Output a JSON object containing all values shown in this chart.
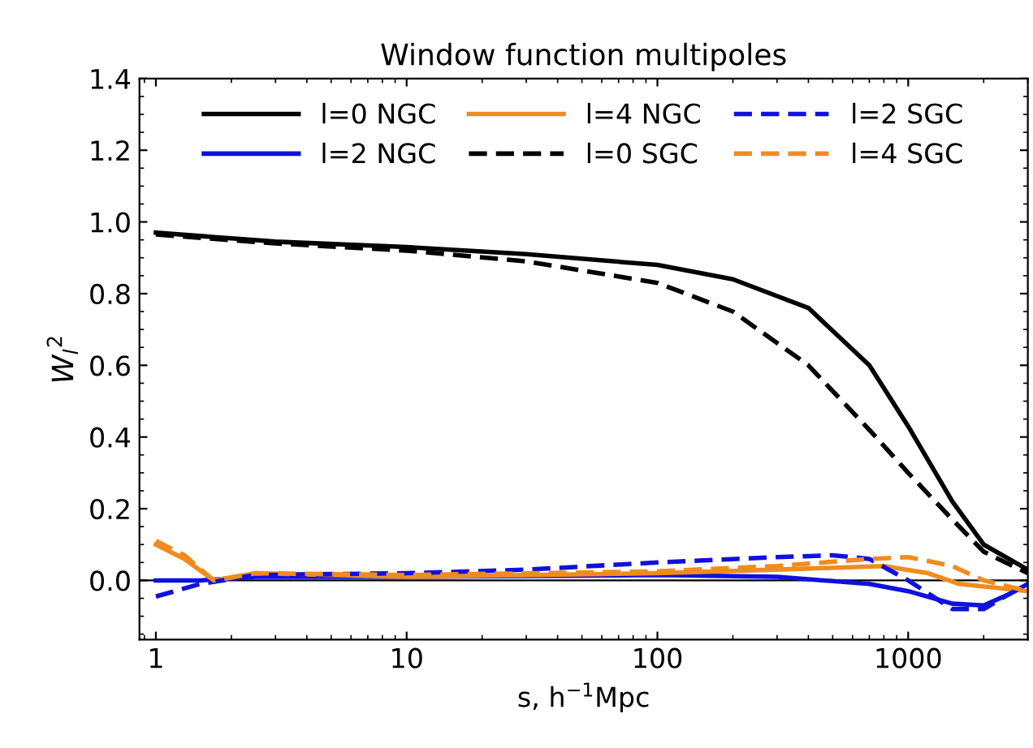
{
  "chart_data": {
    "type": "line",
    "title": "Window function multipoles",
    "xlabel": "s, h$^{−1}$Mpc",
    "ylabel": "W$_{l}$$^{2}$",
    "log": "x",
    "xlim": [
      0.86,
      3000
    ],
    "xticks": [
      1,
      10,
      100,
      1000
    ],
    "ylim": [
      -0.165,
      1.4
    ],
    "yticks": [
      {
        "value": 0,
        "label": "0.0"
      },
      0.2,
      0.4,
      0.6,
      0.8,
      {
        "value": 1,
        "label": "1.0"
      },
      1.2,
      1.4
    ],
    "grid": false,
    "legend": "top",
    "ref_lines": [
      {
        "axis": "y",
        "value": 0,
        "label": null,
        "color": "#000000"
      }
    ],
    "series": [
      {
        "name": "l=0 NGC",
        "color": "#000000",
        "line_style": "solid",
        "x": [
          1,
          3,
          10,
          30,
          100,
          200,
          400,
          700,
          1000,
          1500,
          2000,
          3000
        ],
        "values": [
          0.97,
          0.945,
          0.93,
          0.91,
          0.88,
          0.84,
          0.76,
          0.6,
          0.43,
          0.22,
          0.1,
          0.03
        ]
      },
      {
        "name": "l=2 NGC",
        "color": "#1010e0",
        "line_style": "solid",
        "x": [
          1,
          1.5,
          2.5,
          10,
          100,
          300,
          700,
          1000,
          1500,
          2000,
          2500,
          3000
        ],
        "values": [
          0.0,
          0.0,
          0.01,
          0.01,
          0.015,
          0.01,
          -0.01,
          -0.03,
          -0.065,
          -0.07,
          -0.04,
          -0.01
        ]
      },
      {
        "name": "l=4 NGC",
        "color": "#f08c1e",
        "line_style": "solid",
        "x": [
          1,
          1.3,
          1.7,
          2.5,
          10,
          100,
          300,
          800,
          1200,
          1600,
          2200,
          3000
        ],
        "values": [
          0.1,
          0.06,
          0.0,
          0.02,
          0.01,
          0.02,
          0.03,
          0.04,
          0.02,
          -0.01,
          -0.02,
          -0.03
        ]
      },
      {
        "name": "l=0 SGC",
        "color": "#000000",
        "line_style": "dashed",
        "x": [
          1,
          3,
          10,
          30,
          100,
          200,
          400,
          700,
          1000,
          1500,
          2000,
          3000
        ],
        "values": [
          0.965,
          0.94,
          0.92,
          0.89,
          0.83,
          0.75,
          0.6,
          0.42,
          0.3,
          0.17,
          0.08,
          0.02
        ]
      },
      {
        "name": "l=2 SGC",
        "color": "#1010e0",
        "line_style": "dashed",
        "x": [
          1,
          1.5,
          2.5,
          10,
          30,
          100,
          300,
          500,
          700,
          1000,
          1500,
          2000,
          2500,
          3000
        ],
        "values": [
          -0.045,
          -0.01,
          0.015,
          0.02,
          0.03,
          0.05,
          0.065,
          0.07,
          0.06,
          0.0,
          -0.08,
          -0.08,
          -0.04,
          -0.01
        ]
      },
      {
        "name": "l=4 SGC",
        "color": "#f08c1e",
        "line_style": "dashed",
        "x": [
          1,
          1.3,
          1.7,
          2.5,
          10,
          100,
          300,
          700,
          1000,
          1500,
          2000,
          3000
        ],
        "values": [
          0.11,
          0.07,
          0.0,
          0.02,
          0.015,
          0.025,
          0.04,
          0.06,
          0.065,
          0.04,
          0.0,
          -0.03
        ]
      }
    ]
  }
}
